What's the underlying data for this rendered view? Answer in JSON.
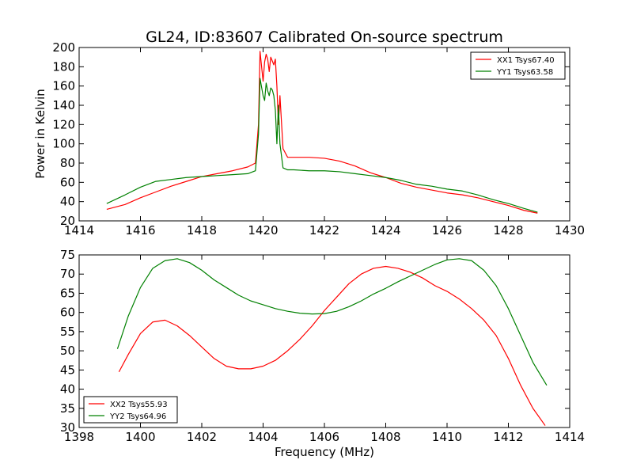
{
  "figure": {
    "title": "GL24, ID:83607 Calibrated On-source spectrum"
  },
  "chart_data": [
    {
      "type": "line",
      "title": "GL24, ID:83607 Calibrated On-source spectrum",
      "xlabel": "",
      "ylabel": "Power in Kelvin",
      "xlim": [
        1414,
        1430
      ],
      "ylim": [
        20,
        200
      ],
      "xticks": [
        "1414",
        "1416",
        "1418",
        "1420",
        "1422",
        "1424",
        "1426",
        "1428",
        "1430"
      ],
      "yticks": [
        "20",
        "40",
        "60",
        "80",
        "100",
        "120",
        "140",
        "160",
        "180",
        "200"
      ],
      "grid": false,
      "legend_position": "top-right",
      "series": [
        {
          "name": "XX1 Tsys67.40",
          "color": "#ff0000",
          "x": [
            1414.9,
            1415.5,
            1416.0,
            1416.5,
            1417.0,
            1417.5,
            1418.0,
            1418.5,
            1419.0,
            1419.5,
            1419.75,
            1419.85,
            1419.9,
            1420.0,
            1420.05,
            1420.1,
            1420.15,
            1420.2,
            1420.25,
            1420.3,
            1420.35,
            1420.4,
            1420.45,
            1420.5,
            1420.55,
            1420.65,
            1420.8,
            1421.0,
            1421.5,
            1422.0,
            1422.5,
            1423.0,
            1423.5,
            1424.0,
            1424.5,
            1425.0,
            1425.5,
            1426.0,
            1426.5,
            1427.0,
            1427.5,
            1428.0,
            1428.5,
            1428.95
          ],
          "y": [
            32,
            37,
            44,
            50,
            56,
            61,
            66,
            69,
            72,
            76,
            80,
            120,
            196,
            165,
            185,
            193,
            188,
            175,
            190,
            186,
            182,
            188,
            160,
            120,
            150,
            95,
            86,
            86,
            86,
            85,
            82,
            77,
            70,
            65,
            59,
            55,
            52,
            49,
            47,
            44,
            40,
            36,
            31,
            28
          ]
        },
        {
          "name": "YY1 Tsys63.58",
          "color": "#008000",
          "x": [
            1414.9,
            1415.5,
            1416.0,
            1416.5,
            1417.0,
            1417.5,
            1418.0,
            1418.5,
            1419.0,
            1419.5,
            1419.75,
            1419.85,
            1419.9,
            1420.0,
            1420.05,
            1420.1,
            1420.15,
            1420.2,
            1420.25,
            1420.3,
            1420.35,
            1420.4,
            1420.45,
            1420.5,
            1420.55,
            1420.65,
            1420.8,
            1421.0,
            1421.5,
            1422.0,
            1422.5,
            1423.0,
            1423.5,
            1424.0,
            1424.5,
            1425.0,
            1425.5,
            1426.0,
            1426.5,
            1427.0,
            1427.5,
            1428.0,
            1428.5,
            1428.95
          ],
          "y": [
            38,
            47,
            55,
            61,
            63,
            65,
            66,
            67,
            68,
            69,
            72,
            110,
            168,
            150,
            145,
            163,
            155,
            150,
            158,
            156,
            150,
            135,
            100,
            140,
            100,
            75,
            73,
            73,
            72,
            72,
            71,
            69,
            67,
            65,
            62,
            58,
            56,
            53,
            51,
            47,
            42,
            38,
            33,
            29
          ]
        }
      ]
    },
    {
      "type": "line",
      "title": "",
      "xlabel": "Frequency (MHz)",
      "ylabel": "",
      "xlim": [
        1398,
        1414
      ],
      "ylim": [
        30,
        75
      ],
      "xticks": [
        "1398",
        "1400",
        "1402",
        "1404",
        "1406",
        "1408",
        "1410",
        "1412",
        "1414"
      ],
      "yticks": [
        "30",
        "35",
        "40",
        "45",
        "50",
        "55",
        "60",
        "65",
        "70",
        "75"
      ],
      "grid": false,
      "legend_position": "bottom-left",
      "series": [
        {
          "name": "XX2 Tsys55.93",
          "color": "#ff0000",
          "x": [
            1399.3,
            1399.6,
            1400.0,
            1400.4,
            1400.8,
            1401.2,
            1401.6,
            1402.0,
            1402.4,
            1402.8,
            1403.2,
            1403.6,
            1404.0,
            1404.4,
            1404.8,
            1405.2,
            1405.6,
            1406.0,
            1406.4,
            1406.8,
            1407.2,
            1407.6,
            1408.0,
            1408.4,
            1408.8,
            1409.2,
            1409.6,
            1410.0,
            1410.4,
            1410.8,
            1411.2,
            1411.6,
            1412.0,
            1412.4,
            1412.8,
            1413.2
          ],
          "y": [
            44.5,
            49,
            54.5,
            57.5,
            58,
            56.5,
            54,
            51,
            48,
            46,
            45.3,
            45.3,
            46,
            47.5,
            50,
            53,
            56.5,
            60.5,
            64,
            67.5,
            70,
            71.5,
            72,
            71.5,
            70.5,
            69,
            67,
            65.5,
            63.5,
            61,
            58,
            54,
            48,
            41,
            35,
            30.5
          ]
        },
        {
          "name": "YY2 Tsys64.96",
          "color": "#008000",
          "x": [
            1399.25,
            1399.6,
            1400.0,
            1400.4,
            1400.8,
            1401.2,
            1401.6,
            1402.0,
            1402.4,
            1402.8,
            1403.2,
            1403.6,
            1404.0,
            1404.4,
            1404.8,
            1405.2,
            1405.6,
            1406.0,
            1406.4,
            1406.8,
            1407.2,
            1407.6,
            1408.0,
            1408.4,
            1408.8,
            1409.2,
            1409.6,
            1410.0,
            1410.4,
            1410.8,
            1411.2,
            1411.6,
            1412.0,
            1412.4,
            1412.8,
            1413.25
          ],
          "y": [
            50.5,
            59,
            66.5,
            71.5,
            73.5,
            74,
            73,
            71,
            68.5,
            66.5,
            64.5,
            63,
            62,
            61,
            60.3,
            59.8,
            59.6,
            59.7,
            60.3,
            61.5,
            63,
            64.8,
            66.3,
            68,
            69.5,
            71,
            72.5,
            73.7,
            74,
            73.5,
            71,
            67,
            61,
            54,
            47,
            41
          ]
        }
      ]
    }
  ]
}
